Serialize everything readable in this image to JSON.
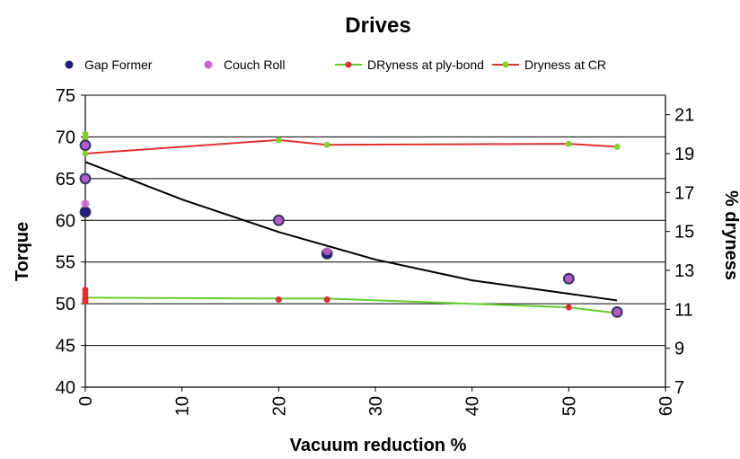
{
  "chart_data": {
    "type": "scatter",
    "title": "Drives",
    "xlabel": "Vacuum reduction %",
    "ylabel": "Torque",
    "y2label": "% dryness",
    "xlim": [
      0,
      60
    ],
    "ylim": [
      40,
      75
    ],
    "y2lim": [
      7,
      22
    ],
    "xticks": [
      0,
      10,
      20,
      30,
      40,
      50,
      60
    ],
    "yticks": [
      40,
      45,
      50,
      55,
      60,
      65,
      70,
      75
    ],
    "y2ticks": [
      7,
      9,
      11,
      13,
      15,
      17,
      19,
      21
    ],
    "grid": "horizontal",
    "legend": "top",
    "series": [
      {
        "name": "Gap Former",
        "kind": "scatter",
        "axis": "left",
        "color": "#1f1f7a",
        "points": [
          [
            0,
            69
          ],
          [
            0,
            65
          ],
          [
            0,
            61
          ],
          [
            20,
            60
          ],
          [
            25,
            56
          ],
          [
            50,
            53
          ],
          [
            55,
            49
          ]
        ]
      },
      {
        "name": "Couch Roll",
        "kind": "scatter",
        "axis": "left",
        "color": "#cc66cc",
        "points": [
          [
            0,
            69
          ],
          [
            0,
            65
          ],
          [
            0,
            62
          ],
          [
            20,
            60
          ],
          [
            25,
            56.3
          ],
          [
            50,
            53
          ],
          [
            55,
            49
          ]
        ]
      },
      {
        "name": "DRyness at ply-bond",
        "kind": "line",
        "axis": "right",
        "color": "#66cc33",
        "marker_color": "#e03030",
        "points": [
          [
            0,
            12.0
          ],
          [
            0,
            11.8
          ],
          [
            0,
            11.6
          ],
          [
            0,
            11.5
          ],
          [
            0,
            11.4
          ],
          [
            20,
            11.5
          ],
          [
            25,
            11.5
          ],
          [
            50,
            11.1
          ],
          [
            55,
            10.8
          ]
        ],
        "line_points": [
          [
            0,
            11.6
          ],
          [
            20,
            11.55
          ],
          [
            25,
            11.55
          ],
          [
            50,
            11.1
          ],
          [
            55,
            10.8
          ]
        ]
      },
      {
        "name": "Dryness at CR",
        "kind": "line",
        "axis": "right",
        "color": "#e03030",
        "marker_color": "#88cc33",
        "points": [
          [
            0,
            20.0
          ],
          [
            0,
            19.8
          ],
          [
            0,
            19.0
          ],
          [
            20,
            19.7
          ],
          [
            25,
            19.45
          ],
          [
            50,
            19.5
          ],
          [
            55,
            19.35
          ]
        ],
        "line_points": [
          [
            0,
            19.0
          ],
          [
            20,
            19.7
          ],
          [
            25,
            19.45
          ],
          [
            50,
            19.5
          ],
          [
            55,
            19.35
          ]
        ]
      }
    ],
    "trendline": {
      "axis": "left",
      "color": "#000000",
      "points": [
        [
          0,
          67
        ],
        [
          10,
          62.5
        ],
        [
          20,
          58.6
        ],
        [
          30,
          55.3
        ],
        [
          40,
          52.8
        ],
        [
          50,
          51.2
        ],
        [
          55,
          50.4
        ]
      ]
    }
  }
}
